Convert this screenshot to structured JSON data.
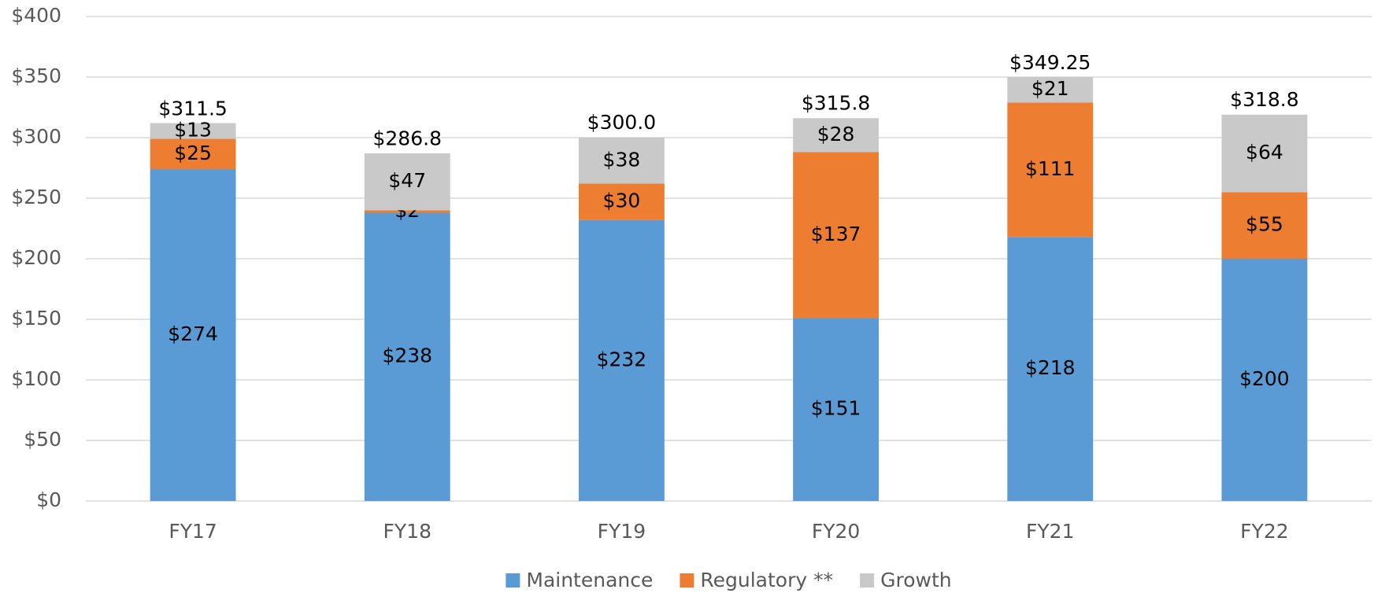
{
  "chart_data": {
    "type": "stacked_bar",
    "categories": [
      "FY17",
      "FY18",
      "FY19",
      "FY20",
      "FY21",
      "FY22"
    ],
    "series": [
      {
        "name": "Maintenance",
        "color": "#5b9bd5",
        "values": [
          274,
          238,
          232,
          151,
          218,
          200
        ],
        "value_labels": [
          "$274",
          "$238",
          "$232",
          "$151",
          "$218",
          "$200"
        ]
      },
      {
        "name": "Regulatory **",
        "color": "#ed7d31",
        "values": [
          25,
          2,
          30,
          137,
          111,
          55
        ],
        "value_labels": [
          "$25",
          "$2",
          "$30",
          "$137",
          "$111",
          "$55"
        ]
      },
      {
        "name": "Growth",
        "color": "#c9c9c9",
        "values": [
          13,
          47,
          38,
          28,
          21,
          64
        ],
        "value_labels": [
          "$13",
          "$47",
          "$38",
          "$28",
          "$21",
          "$64"
        ]
      }
    ],
    "totals": [
      {
        "value": 311.5,
        "label": "$311.5"
      },
      {
        "value": 286.8,
        "label": "$286.8"
      },
      {
        "value": 300.0,
        "label": "$300.0"
      },
      {
        "value": 315.8,
        "label": "$315.8"
      },
      {
        "value": 349.25,
        "label": "$349.25"
      },
      {
        "value": 318.8,
        "label": "$318.8"
      }
    ],
    "ylim": [
      0,
      400
    ],
    "yticks": [
      {
        "value": 0,
        "label": "$0"
      },
      {
        "value": 50,
        "label": "$50"
      },
      {
        "value": 100,
        "label": "$100"
      },
      {
        "value": 150,
        "label": "$150"
      },
      {
        "value": 200,
        "label": "$200"
      },
      {
        "value": 250,
        "label": "$250"
      },
      {
        "value": 300,
        "label": "$300"
      },
      {
        "value": 350,
        "label": "$350"
      },
      {
        "value": 400,
        "label": "$400"
      }
    ],
    "grid": true,
    "legend": "bottom"
  }
}
